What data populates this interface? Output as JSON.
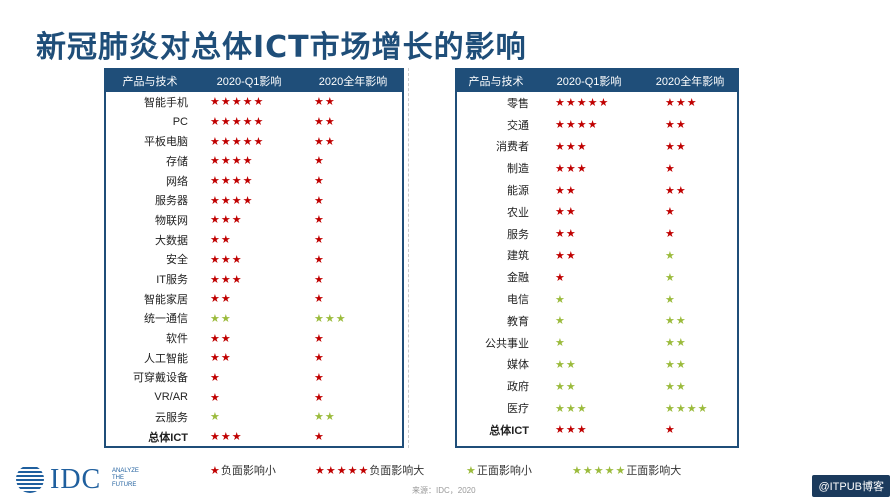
{
  "title": "新冠肺炎对总体ICT市场增长的影响",
  "colors": {
    "header": "#1f4e79",
    "red": "#c00000",
    "green": "#9bbb3c"
  },
  "left_table": {
    "headers": [
      "产品与技术",
      "2020-Q1影响",
      "2020全年影响"
    ],
    "rows": [
      {
        "name": "智能手机",
        "q1": "★★★★★",
        "q1_color": "red",
        "year": "★★",
        "year_color": "red"
      },
      {
        "name": "PC",
        "q1": "★★★★★",
        "q1_color": "red",
        "year": "★★",
        "year_color": "red"
      },
      {
        "name": "平板电脑",
        "q1": "★★★★★",
        "q1_color": "red",
        "year": "★★",
        "year_color": "red"
      },
      {
        "name": "存储",
        "q1": "★★★★",
        "q1_color": "red",
        "year": "★",
        "year_color": "red"
      },
      {
        "name": "网络",
        "q1": "★★★★",
        "q1_color": "red",
        "year": "★",
        "year_color": "red"
      },
      {
        "name": "服务器",
        "q1": "★★★★",
        "q1_color": "red",
        "year": "★",
        "year_color": "red"
      },
      {
        "name": "物联网",
        "q1": "★★★",
        "q1_color": "red",
        "year": "★",
        "year_color": "red"
      },
      {
        "name": "大数据",
        "q1": "★★",
        "q1_color": "red",
        "year": "★",
        "year_color": "red"
      },
      {
        "name": "安全",
        "q1": "★★★",
        "q1_color": "red",
        "year": "★",
        "year_color": "red"
      },
      {
        "name": "IT服务",
        "q1": "★★★",
        "q1_color": "red",
        "year": "★",
        "year_color": "red"
      },
      {
        "name": "智能家居",
        "q1": "★★",
        "q1_color": "red",
        "year": "★",
        "year_color": "red"
      },
      {
        "name": "统一通信",
        "q1": "★★",
        "q1_color": "green",
        "year": "★★★",
        "year_color": "green"
      },
      {
        "name": "软件",
        "q1": "★★",
        "q1_color": "red",
        "year": "★",
        "year_color": "red"
      },
      {
        "name": "人工智能",
        "q1": "★★",
        "q1_color": "red",
        "year": "★",
        "year_color": "red"
      },
      {
        "name": "可穿戴设备",
        "q1": "★",
        "q1_color": "red",
        "year": "★",
        "year_color": "red"
      },
      {
        "name": "VR/AR",
        "q1": "★",
        "q1_color": "red",
        "year": "★",
        "year_color": "red"
      },
      {
        "name": "云服务",
        "q1": "★",
        "q1_color": "green",
        "year": "★★",
        "year_color": "green"
      },
      {
        "name": "总体ICT",
        "q1": "★★★",
        "q1_color": "red",
        "year": "★",
        "year_color": "red",
        "bold": true
      }
    ]
  },
  "right_table": {
    "headers": [
      "产品与技术",
      "2020-Q1影响",
      "2020全年影响"
    ],
    "rows": [
      {
        "name": "零售",
        "q1": "★★★★★",
        "q1_color": "red",
        "year": "★★★",
        "year_color": "red"
      },
      {
        "name": "交通",
        "q1": "★★★★",
        "q1_color": "red",
        "year": "★★",
        "year_color": "red"
      },
      {
        "name": "消费者",
        "q1": "★★★",
        "q1_color": "red",
        "year": "★★",
        "year_color": "red"
      },
      {
        "name": "制造",
        "q1": "★★★",
        "q1_color": "red",
        "year": "★",
        "year_color": "red"
      },
      {
        "name": "能源",
        "q1": "★★",
        "q1_color": "red",
        "year": "★★",
        "year_color": "red"
      },
      {
        "name": "农业",
        "q1": "★★",
        "q1_color": "red",
        "year": "★",
        "year_color": "red"
      },
      {
        "name": "服务",
        "q1": "★★",
        "q1_color": "red",
        "year": "★",
        "year_color": "red"
      },
      {
        "name": "建筑",
        "q1": "★★",
        "q1_color": "red",
        "year": "★",
        "year_color": "green"
      },
      {
        "name": "金融",
        "q1": "★",
        "q1_color": "red",
        "year": "★",
        "year_color": "green"
      },
      {
        "name": "电信",
        "q1": "★",
        "q1_color": "green",
        "year": "★",
        "year_color": "green"
      },
      {
        "name": "教育",
        "q1": "★",
        "q1_color": "green",
        "year": "★★",
        "year_color": "green"
      },
      {
        "name": "公共事业",
        "q1": "★",
        "q1_color": "green",
        "year": "★★",
        "year_color": "green"
      },
      {
        "name": "媒体",
        "q1": "★★",
        "q1_color": "green",
        "year": "★★",
        "year_color": "green"
      },
      {
        "name": "政府",
        "q1": "★★",
        "q1_color": "green",
        "year": "★★",
        "year_color": "green"
      },
      {
        "name": "医疗",
        "q1": "★★★",
        "q1_color": "green",
        "year": "★★★★",
        "year_color": "green"
      },
      {
        "name": "总体ICT",
        "q1": "★★★",
        "q1_color": "red",
        "year": "★",
        "year_color": "red",
        "bold": true
      }
    ]
  },
  "legend": [
    {
      "stars": "★",
      "color": "red",
      "label": "负面影响小"
    },
    {
      "stars": "★★★★★",
      "color": "red",
      "label": "负面影响大"
    },
    {
      "stars": "★",
      "color": "green",
      "label": "正面影响小"
    },
    {
      "stars": "★★★★★",
      "color": "green",
      "label": "正面影响大"
    }
  ],
  "logo": {
    "text": "IDC",
    "tagline": "ANALYZE THE FUTURE"
  },
  "source": "来源：IDC，2020",
  "watermark": "@ITPUB博客"
}
